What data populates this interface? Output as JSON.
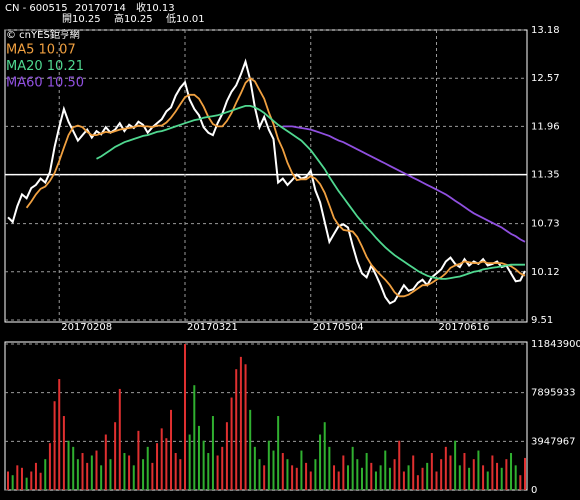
{
  "header": {
    "symbol": "CN - 600515",
    "date": "20170714",
    "close": "收10.13",
    "open": "開10.25",
    "high": "高10.25",
    "low": "低10.01",
    "watermark": "© cnYES鉅亨網"
  },
  "chart_data": [
    {
      "type": "line",
      "categories": [
        null,
        null,
        null,
        null,
        null,
        null,
        null,
        null,
        null,
        null,
        null,
        "20170208",
        null,
        null,
        null,
        null,
        null,
        null,
        null,
        null,
        null,
        null,
        null,
        null,
        null,
        null,
        null,
        null,
        null,
        null,
        null,
        null,
        null,
        null,
        null,
        null,
        null,
        null,
        "20170321",
        null,
        null,
        null,
        null,
        null,
        null,
        null,
        null,
        null,
        null,
        null,
        null,
        null,
        null,
        null,
        null,
        null,
        null,
        null,
        null,
        null,
        null,
        null,
        null,
        null,
        null,
        "20170504",
        null,
        null,
        null,
        null,
        null,
        null,
        null,
        null,
        null,
        null,
        null,
        null,
        null,
        null,
        null,
        null,
        null,
        null,
        null,
        null,
        null,
        null,
        null,
        null,
        null,
        null,
        "20170616",
        null,
        null,
        null,
        null,
        null,
        null,
        null,
        null,
        null,
        null,
        null,
        null,
        null,
        null,
        null,
        null,
        null,
        null,
        null
      ],
      "series": [
        {
          "name": "Close",
          "color": "#ffffff",
          "values": [
            10.81,
            10.75,
            10.95,
            11.1,
            11.05,
            11.18,
            11.22,
            11.3,
            11.25,
            11.38,
            11.7,
            11.95,
            12.18,
            12.02,
            11.9,
            11.78,
            11.85,
            11.92,
            11.82,
            11.9,
            11.86,
            11.95,
            11.88,
            11.92,
            12.0,
            11.9,
            11.98,
            11.94,
            12.02,
            11.98,
            11.88,
            11.95,
            12.0,
            12.05,
            12.15,
            12.2,
            12.35,
            12.45,
            12.52,
            12.3,
            12.18,
            12.1,
            11.95,
            11.88,
            11.85,
            12.0,
            12.12,
            12.28,
            12.4,
            12.48,
            12.62,
            12.78,
            12.55,
            12.2,
            11.95,
            12.08,
            11.92,
            11.8,
            11.25,
            11.3,
            11.22,
            11.28,
            11.35,
            11.3,
            11.32,
            11.4,
            11.15,
            11.0,
            10.75,
            10.5,
            10.6,
            10.7,
            10.72,
            10.68,
            10.45,
            10.25,
            10.1,
            10.05,
            10.2,
            10.08,
            9.95,
            9.8,
            9.72,
            9.75,
            9.85,
            9.95,
            9.88,
            9.9,
            9.98,
            10.02,
            9.95,
            10.05,
            10.1,
            10.15,
            10.25,
            10.3,
            10.22,
            10.18,
            10.28,
            10.2,
            10.25,
            10.22,
            10.28,
            10.2,
            10.22,
            10.25,
            10.18,
            10.2,
            10.1,
            10.0,
            10.01,
            10.13
          ]
        },
        {
          "name": "MA5 10.07",
          "color": "#f0a040",
          "values": [
            null,
            null,
            null,
            null,
            10.93,
            11.01,
            11.1,
            11.17,
            11.2,
            11.27,
            11.37,
            11.52,
            11.69,
            11.85,
            11.95,
            11.97,
            11.95,
            11.89,
            11.85,
            11.85,
            11.87,
            11.89,
            11.88,
            11.9,
            11.92,
            11.93,
            11.94,
            11.95,
            11.97,
            11.96,
            11.96,
            11.95,
            11.97,
            11.97,
            12.01,
            12.07,
            12.15,
            12.24,
            12.33,
            12.36,
            12.36,
            12.31,
            12.21,
            12.08,
            11.99,
            11.96,
            11.96,
            12.03,
            12.13,
            12.26,
            12.38,
            12.51,
            12.57,
            12.53,
            12.42,
            12.31,
            12.14,
            11.99,
            11.8,
            11.67,
            11.5,
            11.37,
            11.28,
            11.29,
            11.29,
            11.33,
            11.3,
            11.23,
            11.12,
            10.96,
            10.8,
            10.71,
            10.65,
            10.64,
            10.63,
            10.56,
            10.44,
            10.31,
            10.21,
            10.14,
            10.08,
            10.02,
            9.95,
            9.86,
            9.81,
            9.81,
            9.83,
            9.87,
            9.91,
            9.95,
            9.95,
            9.98,
            10.02,
            10.05,
            10.1,
            10.17,
            10.2,
            10.22,
            10.25,
            10.24,
            10.23,
            10.23,
            10.25,
            10.23,
            10.23,
            10.23,
            10.23,
            10.21,
            10.19,
            10.15,
            10.1,
            10.07
          ]
        },
        {
          "name": "MA20 10.21",
          "color": "#50d890",
          "values": [
            null,
            null,
            null,
            null,
            null,
            null,
            null,
            null,
            null,
            null,
            null,
            null,
            null,
            null,
            null,
            null,
            null,
            null,
            null,
            11.55,
            11.58,
            11.62,
            11.66,
            11.7,
            11.73,
            11.76,
            11.78,
            11.8,
            11.82,
            11.84,
            11.85,
            11.87,
            11.89,
            11.9,
            11.92,
            11.94,
            11.96,
            11.98,
            12.0,
            12.02,
            12.04,
            12.05,
            12.07,
            12.08,
            12.09,
            12.1,
            12.12,
            12.14,
            12.16,
            12.18,
            12.2,
            12.22,
            12.22,
            12.2,
            12.17,
            12.13,
            12.08,
            12.03,
            11.98,
            11.94,
            11.9,
            11.86,
            11.82,
            11.78,
            11.72,
            11.66,
            11.58,
            11.5,
            11.42,
            11.32,
            11.23,
            11.14,
            11.06,
            10.98,
            10.9,
            10.82,
            10.75,
            10.68,
            10.62,
            10.55,
            10.49,
            10.43,
            10.38,
            10.33,
            10.29,
            10.25,
            10.21,
            10.17,
            10.13,
            10.1,
            10.07,
            10.05,
            10.04,
            10.03,
            10.03,
            10.04,
            10.05,
            10.06,
            10.08,
            10.1,
            10.12,
            10.13,
            10.15,
            10.16,
            10.17,
            10.18,
            10.19,
            10.2,
            10.21,
            10.21,
            10.21,
            10.21
          ]
        },
        {
          "name": "MA60 10.50",
          "color": "#9050e0",
          "values": [
            null,
            null,
            null,
            null,
            null,
            null,
            null,
            null,
            null,
            null,
            null,
            null,
            null,
            null,
            null,
            null,
            null,
            null,
            null,
            null,
            null,
            null,
            null,
            null,
            null,
            null,
            null,
            null,
            null,
            null,
            null,
            null,
            null,
            null,
            null,
            null,
            null,
            null,
            null,
            null,
            null,
            null,
            null,
            null,
            null,
            null,
            null,
            null,
            null,
            null,
            null,
            null,
            null,
            null,
            null,
            null,
            null,
            null,
            null,
            11.96,
            11.96,
            11.96,
            11.95,
            11.94,
            11.93,
            11.92,
            11.9,
            11.88,
            11.86,
            11.84,
            11.81,
            11.78,
            11.76,
            11.73,
            11.7,
            11.67,
            11.64,
            11.61,
            11.58,
            11.55,
            11.52,
            11.49,
            11.46,
            11.43,
            11.4,
            11.37,
            11.34,
            11.31,
            11.28,
            11.25,
            11.22,
            11.19,
            11.16,
            11.13,
            11.1,
            11.06,
            11.02,
            10.98,
            10.94,
            10.9,
            10.86,
            10.83,
            10.8,
            10.77,
            10.74,
            10.71,
            10.68,
            10.64,
            10.6,
            10.57,
            10.53,
            10.5
          ]
        }
      ],
      "ylim": [
        9.51,
        13.18
      ],
      "yticks": [
        9.51,
        10.12,
        10.73,
        11.35,
        11.96,
        12.57,
        13.18
      ],
      "reference_line": 11.35,
      "grid": true
    },
    {
      "type": "bar",
      "values": [
        1500000,
        1200000,
        2000000,
        1800000,
        1000000,
        1500000,
        2200000,
        1400000,
        2500000,
        3800000,
        7200000,
        9000000,
        6000000,
        4000000,
        3500000,
        2500000,
        3000000,
        2200000,
        2800000,
        3200000,
        2000000,
        4500000,
        2500000,
        5500000,
        8200000,
        3000000,
        2800000,
        2000000,
        4800000,
        2500000,
        3500000,
        2200000,
        3800000,
        5000000,
        4200000,
        6500000,
        3000000,
        2500000,
        11843900,
        4500000,
        8500000,
        5200000,
        4000000,
        3000000,
        6000000,
        2800000,
        3500000,
        5500000,
        7500000,
        9800000,
        10800000,
        10200000,
        6500000,
        3500000,
        2500000,
        2000000,
        4000000,
        3200000,
        6000000,
        3000000,
        2500000,
        2000000,
        1800000,
        3200000,
        2200000,
        1500000,
        2500000,
        4500000,
        5500000,
        3500000,
        2000000,
        1500000,
        2800000,
        2000000,
        3500000,
        2500000,
        1800000,
        3000000,
        2200000,
        1500000,
        2000000,
        3200000,
        1800000,
        2500000,
        4000000,
        1500000,
        2000000,
        2800000,
        1200000,
        1800000,
        2200000,
        3000000,
        1500000,
        2500000,
        3500000,
        2800000,
        4000000,
        2000000,
        3000000,
        1800000,
        2500000,
        3200000,
        2000000,
        1500000,
        2800000,
        2200000,
        1800000,
        2500000,
        3000000,
        2000000,
        1200000,
        2600000
      ],
      "up_color": "#e03030",
      "down_color": "#30b030",
      "flat_color": "#ffffff",
      "ylim": [
        0,
        11843900
      ],
      "yticks": [
        0,
        3947967,
        7895933,
        11843900
      ],
      "grid": true
    }
  ]
}
